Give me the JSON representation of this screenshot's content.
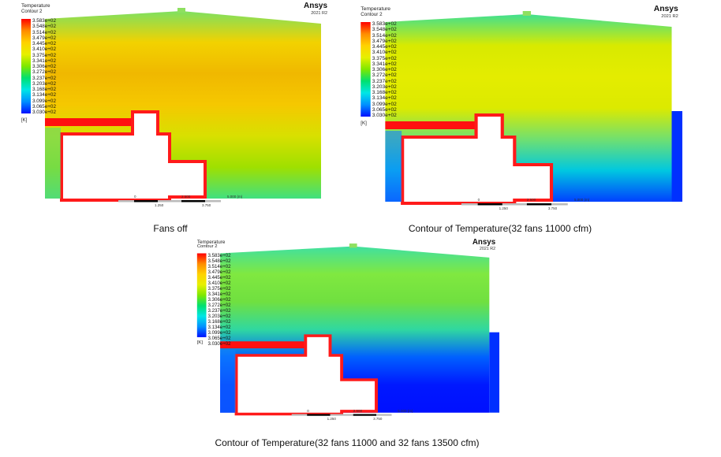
{
  "legend": {
    "title": "Temperature",
    "subtitle": "Contour 2",
    "unit": "[K]",
    "values": [
      "3.583e+02",
      "3.548e+02",
      "3.514e+02",
      "3.479e+02",
      "3.445e+02",
      "3.410e+02",
      "3.375e+02",
      "3.341e+02",
      "3.306e+02",
      "3.272e+02",
      "3.237e+02",
      "3.203e+02",
      "3.168e+02",
      "3.134e+02",
      "3.099e+02",
      "3.065e+02",
      "3.030e+02"
    ],
    "colors": [
      "#ff0000",
      "#ff8c00",
      "#ffd200",
      "#e6f000",
      "#7ee800",
      "#00e070",
      "#00e6e6",
      "#0090ff",
      "#0010ff"
    ]
  },
  "brand": "Ansys",
  "version": "2021 R2",
  "scale": {
    "top": [
      "0",
      "2.500",
      "5.000 (m)"
    ],
    "bottom": [
      "1.250",
      "3.750"
    ]
  },
  "panels": [
    {
      "caption": "Fans off",
      "fill": [
        "#7ee060",
        "#f2d200",
        "#f0b800",
        "#f5c800",
        "#d8e000",
        "#9fe000",
        "#40e080"
      ],
      "right_ext": false
    },
    {
      "caption": "Contour of Temperature(32 fans 11000 cfm)",
      "fill": [
        "#40e090",
        "#d8ea00",
        "#e4ec00",
        "#dcea00",
        "#70e070",
        "#00c8e0",
        "#0040ff"
      ],
      "right_ext": true
    },
    {
      "caption": "Contour of Temperature(32 fans 11000 and 32 fans 13500 cfm)",
      "fill": [
        "#40e0a0",
        "#80e840",
        "#70e040",
        "#30d8a0",
        "#0060ff",
        "#0018ff",
        "#0010ff"
      ],
      "right_ext": true
    }
  ]
}
